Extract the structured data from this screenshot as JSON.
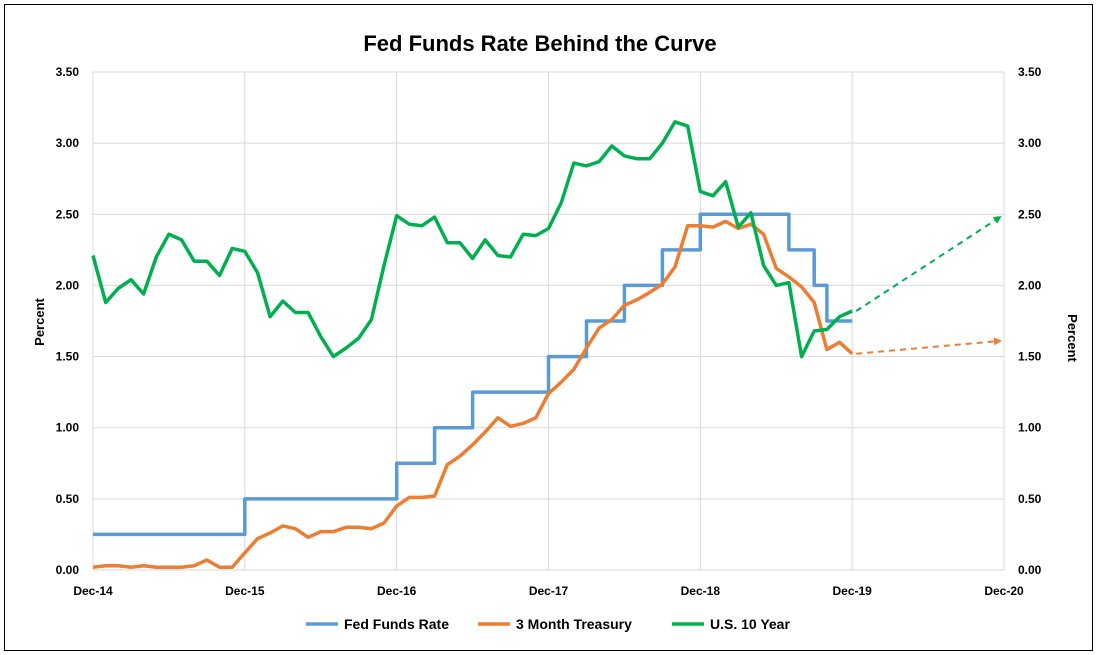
{
  "chart_data": {
    "type": "line",
    "title": "Fed Funds Rate Behind the Curve",
    "ylabel_left": "Percent",
    "ylabel_right": "Percent",
    "ylim": [
      0,
      3.5
    ],
    "y_ticks": [
      "0.00",
      "0.50",
      "1.00",
      "1.50",
      "2.00",
      "2.50",
      "3.00",
      "3.50"
    ],
    "x_ticks": [
      "Dec-14",
      "Dec-15",
      "Dec-16",
      "Dec-17",
      "Dec-18",
      "Dec-19",
      "Dec-20"
    ],
    "x_range": [
      "2014-12",
      "2020-12"
    ],
    "grid": "vertical and horizontal",
    "legend_position": "bottom",
    "colors": {
      "fed": "#5b9bd5",
      "treasury": "#ed7d31",
      "tenyear": "#00b050"
    },
    "series": [
      {
        "name": "Fed Funds Rate",
        "color": "#5b9bd5",
        "step": true,
        "x": [
          "2014-12",
          "2015-12",
          "2016-12",
          "2017-03",
          "2017-06",
          "2017-12",
          "2018-03",
          "2018-06",
          "2018-09",
          "2018-12",
          "2019-07",
          "2019-09",
          "2019-10",
          "2019-12"
        ],
        "values": [
          0.25,
          0.5,
          0.75,
          1.0,
          1.25,
          1.5,
          1.75,
          2.0,
          2.25,
          2.5,
          2.25,
          2.0,
          1.75,
          1.75
        ]
      },
      {
        "name": "3 Month Treasury",
        "color": "#ed7d31",
        "x": [
          "2014-12",
          "2015-01",
          "2015-02",
          "2015-03",
          "2015-04",
          "2015-05",
          "2015-06",
          "2015-07",
          "2015-08",
          "2015-09",
          "2015-10",
          "2015-11",
          "2015-12",
          "2016-01",
          "2016-02",
          "2016-03",
          "2016-04",
          "2016-05",
          "2016-06",
          "2016-07",
          "2016-08",
          "2016-09",
          "2016-10",
          "2016-11",
          "2016-12",
          "2017-01",
          "2017-02",
          "2017-03",
          "2017-04",
          "2017-05",
          "2017-06",
          "2017-07",
          "2017-08",
          "2017-09",
          "2017-10",
          "2017-11",
          "2017-12",
          "2018-01",
          "2018-02",
          "2018-03",
          "2018-04",
          "2018-05",
          "2018-06",
          "2018-07",
          "2018-08",
          "2018-09",
          "2018-10",
          "2018-11",
          "2018-12",
          "2019-01",
          "2019-02",
          "2019-03",
          "2019-04",
          "2019-05",
          "2019-06",
          "2019-07",
          "2019-08",
          "2019-09",
          "2019-10",
          "2019-11",
          "2019-12"
        ],
        "values": [
          0.02,
          0.03,
          0.03,
          0.02,
          0.03,
          0.02,
          0.02,
          0.02,
          0.03,
          0.07,
          0.02,
          0.02,
          0.12,
          0.22,
          0.26,
          0.31,
          0.29,
          0.23,
          0.27,
          0.27,
          0.3,
          0.3,
          0.29,
          0.33,
          0.45,
          0.51,
          0.51,
          0.52,
          0.74,
          0.8,
          0.88,
          0.97,
          1.07,
          1.01,
          1.03,
          1.07,
          1.24,
          1.32,
          1.41,
          1.56,
          1.7,
          1.76,
          1.86,
          1.9,
          1.95,
          2.01,
          2.13,
          2.42,
          2.42,
          2.41,
          2.45,
          2.4,
          2.43,
          2.36,
          2.12,
          2.06,
          1.99,
          1.88,
          1.55,
          1.6,
          1.52
        ]
      },
      {
        "name": "U.S. 10 Year",
        "color": "#00b050",
        "x": [
          "2014-12",
          "2015-01",
          "2015-02",
          "2015-03",
          "2015-04",
          "2015-05",
          "2015-06",
          "2015-07",
          "2015-08",
          "2015-09",
          "2015-10",
          "2015-11",
          "2015-12",
          "2016-01",
          "2016-02",
          "2016-03",
          "2016-04",
          "2016-05",
          "2016-06",
          "2016-07",
          "2016-08",
          "2016-09",
          "2016-10",
          "2016-11",
          "2016-12",
          "2017-01",
          "2017-02",
          "2017-03",
          "2017-04",
          "2017-05",
          "2017-06",
          "2017-07",
          "2017-08",
          "2017-09",
          "2017-10",
          "2017-11",
          "2017-12",
          "2018-01",
          "2018-02",
          "2018-03",
          "2018-04",
          "2018-05",
          "2018-06",
          "2018-07",
          "2018-08",
          "2018-09",
          "2018-10",
          "2018-11",
          "2018-12",
          "2019-01",
          "2019-02",
          "2019-03",
          "2019-04",
          "2019-05",
          "2019-06",
          "2019-07",
          "2019-08",
          "2019-09",
          "2019-10",
          "2019-11",
          "2019-12"
        ],
        "values": [
          2.21,
          1.88,
          1.98,
          2.04,
          1.94,
          2.2,
          2.36,
          2.32,
          2.17,
          2.17,
          2.07,
          2.26,
          2.24,
          2.09,
          1.78,
          1.89,
          1.81,
          1.81,
          1.64,
          1.5,
          1.56,
          1.63,
          1.76,
          2.14,
          2.49,
          2.43,
          2.42,
          2.48,
          2.3,
          2.3,
          2.19,
          2.32,
          2.21,
          2.2,
          2.36,
          2.35,
          2.4,
          2.58,
          2.86,
          2.84,
          2.87,
          2.98,
          2.91,
          2.89,
          2.89,
          3.0,
          3.15,
          3.12,
          2.66,
          2.63,
          2.73,
          2.41,
          2.51,
          2.14,
          2.0,
          2.02,
          1.5,
          1.68,
          1.69,
          1.78,
          1.82
        ]
      }
    ],
    "projections": [
      {
        "series": "U.S. 10 Year",
        "from": [
          "2019-12",
          1.82
        ],
        "to": [
          "2020-12",
          2.48
        ],
        "style": "dashed-arrow",
        "color": "#00b050"
      },
      {
        "series": "3 Month Treasury",
        "from": [
          "2019-12",
          1.52
        ],
        "to": [
          "2020-12",
          1.61
        ],
        "style": "dashed-arrow",
        "color": "#ed7d31"
      }
    ]
  }
}
